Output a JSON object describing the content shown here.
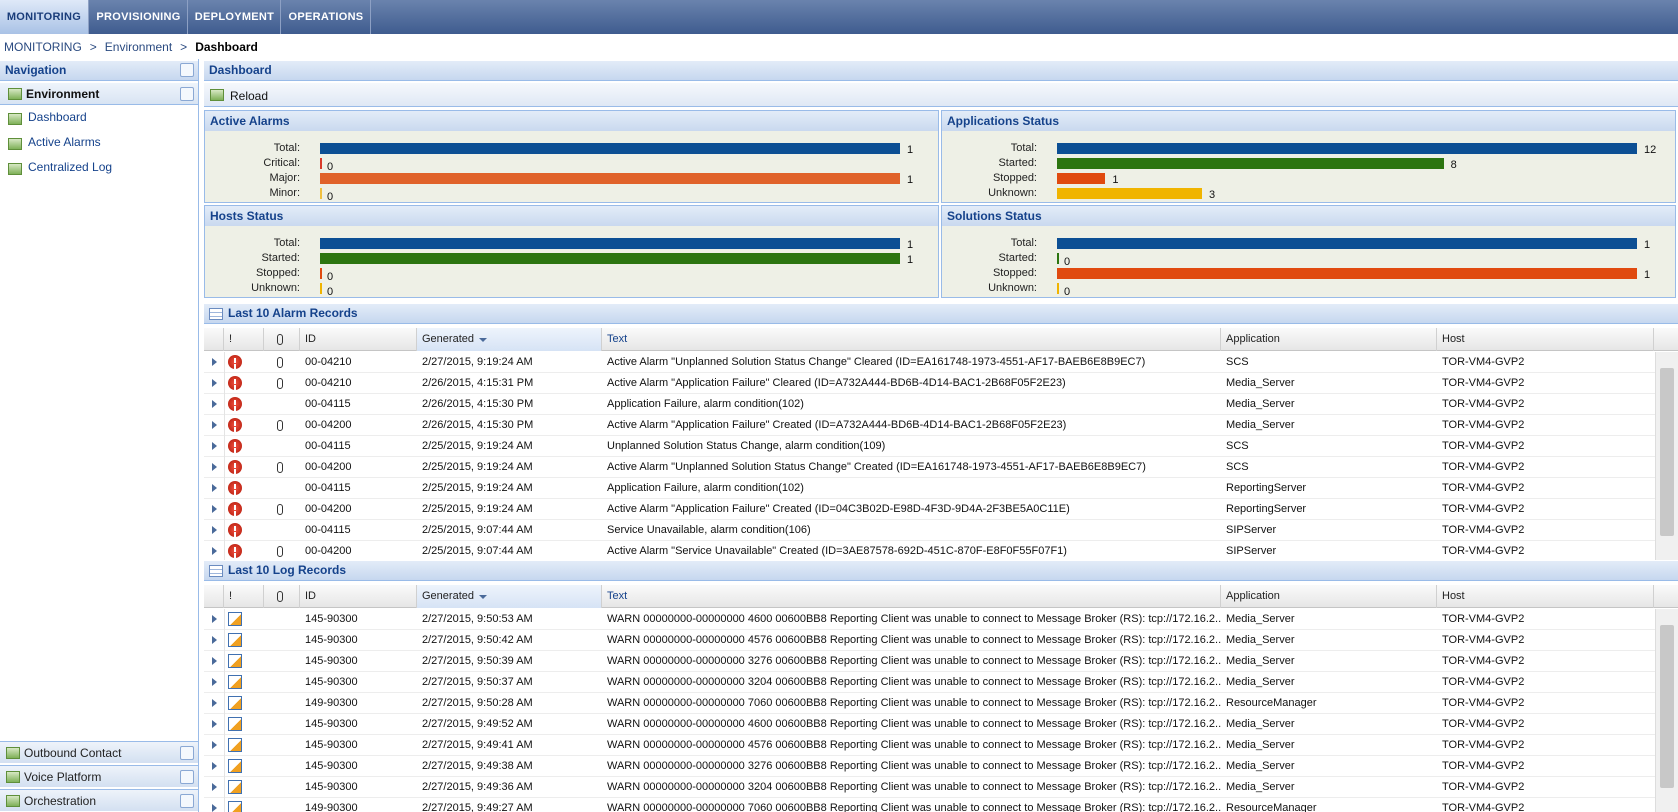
{
  "tabs": [
    "MONITORING",
    "PROVISIONING",
    "DEPLOYMENT",
    "OPERATIONS"
  ],
  "breadcrumb": [
    "MONITORING",
    ">",
    "Environment",
    ">",
    "Dashboard"
  ],
  "navigation": {
    "title": "Navigation",
    "group": "Environment",
    "items": [
      "Dashboard",
      "Active Alarms",
      "Centralized Log"
    ],
    "bottom_groups": [
      "Outbound Contact",
      "Voice Platform",
      "Orchestration"
    ]
  },
  "main": {
    "title": "Dashboard",
    "reload": "Reload"
  },
  "panels": [
    {
      "title": "Active Alarms",
      "rows": [
        {
          "label": "Total:",
          "value": 1,
          "color": "#0c4f94"
        },
        {
          "label": "Critical:",
          "value": 0,
          "color": "#d83a2a"
        },
        {
          "label": "Major:",
          "value": 1,
          "color": "#e0622a"
        },
        {
          "label": "Minor:",
          "value": 0,
          "color": "#f0c040"
        }
      ]
    },
    {
      "title": "Applications Status",
      "rows": [
        {
          "label": "Total:",
          "value": 12,
          "color": "#0c4f94"
        },
        {
          "label": "Started:",
          "value": 8,
          "color": "#2c7510"
        },
        {
          "label": "Stopped:",
          "value": 1,
          "color": "#e04a10"
        },
        {
          "label": "Unknown:",
          "value": 3,
          "color": "#f0b400"
        }
      ]
    },
    {
      "title": "Hosts Status",
      "rows": [
        {
          "label": "Total:",
          "value": 1,
          "color": "#0c4f94"
        },
        {
          "label": "Started:",
          "value": 1,
          "color": "#2c7510"
        },
        {
          "label": "Stopped:",
          "value": 0,
          "color": "#e04a10"
        },
        {
          "label": "Unknown:",
          "value": 0,
          "color": "#f0b400"
        }
      ]
    },
    {
      "title": "Solutions Status",
      "rows": [
        {
          "label": "Total:",
          "value": 1,
          "color": "#0c4f94"
        },
        {
          "label": "Started:",
          "value": 0,
          "color": "#2c7510"
        },
        {
          "label": "Stopped:",
          "value": 1,
          "color": "#e04a10"
        },
        {
          "label": "Unknown:",
          "value": 0,
          "color": "#f0b400"
        }
      ]
    }
  ],
  "alarm_table": {
    "title": "Last 10 Alarm Records",
    "columns": [
      "!",
      "ID",
      "Generated",
      "Text",
      "Application",
      "Host"
    ],
    "rows": [
      {
        "attachment": true,
        "id": "00-04210",
        "generated": "2/27/2015, 9:19:24 AM",
        "text": "Active Alarm \"Unplanned Solution Status Change\" Cleared (ID=EA161748-1973-4551-AF17-BAEB6E8B9EC7)",
        "application": "SCS",
        "host": "TOR-VM4-GVP2"
      },
      {
        "attachment": true,
        "id": "00-04210",
        "generated": "2/26/2015, 4:15:31 PM",
        "text": "Active Alarm \"Application Failure\" Cleared (ID=A732A444-BD6B-4D14-BAC1-2B68F05F2E23)",
        "application": "Media_Server",
        "host": "TOR-VM4-GVP2"
      },
      {
        "attachment": false,
        "id": "00-04115",
        "generated": "2/26/2015, 4:15:30 PM",
        "text": "Application Failure, alarm condition(102)",
        "application": "Media_Server",
        "host": "TOR-VM4-GVP2"
      },
      {
        "attachment": true,
        "id": "00-04200",
        "generated": "2/26/2015, 4:15:30 PM",
        "text": "Active Alarm \"Application Failure\" Created (ID=A732A444-BD6B-4D14-BAC1-2B68F05F2E23)",
        "application": "Media_Server",
        "host": "TOR-VM4-GVP2"
      },
      {
        "attachment": false,
        "id": "00-04115",
        "generated": "2/25/2015, 9:19:24 AM",
        "text": "Unplanned Solution Status Change, alarm condition(109)",
        "application": "SCS",
        "host": "TOR-VM4-GVP2"
      },
      {
        "attachment": true,
        "id": "00-04200",
        "generated": "2/25/2015, 9:19:24 AM",
        "text": "Active Alarm \"Unplanned Solution Status Change\" Created (ID=EA161748-1973-4551-AF17-BAEB6E8B9EC7)",
        "application": "SCS",
        "host": "TOR-VM4-GVP2"
      },
      {
        "attachment": false,
        "id": "00-04115",
        "generated": "2/25/2015, 9:19:24 AM",
        "text": "Application Failure, alarm condition(102)",
        "application": "ReportingServer",
        "host": "TOR-VM4-GVP2"
      },
      {
        "attachment": true,
        "id": "00-04200",
        "generated": "2/25/2015, 9:19:24 AM",
        "text": "Active Alarm \"Application Failure\" Created (ID=04C3B02D-E98D-4F3D-9D4A-2F3BE5A0C11E)",
        "application": "ReportingServer",
        "host": "TOR-VM4-GVP2"
      },
      {
        "attachment": false,
        "id": "00-04115",
        "generated": "2/25/2015, 9:07:44 AM",
        "text": "Service Unavailable, alarm condition(106)",
        "application": "SIPServer",
        "host": "TOR-VM4-GVP2"
      },
      {
        "attachment": true,
        "id": "00-04200",
        "generated": "2/25/2015, 9:07:44 AM",
        "text": "Active Alarm \"Service Unavailable\" Created (ID=3AE87578-692D-451C-870F-E8F0F55F07F1)",
        "application": "SIPServer",
        "host": "TOR-VM4-GVP2"
      }
    ]
  },
  "log_table": {
    "title": "Last 10 Log Records",
    "columns": [
      "!",
      "ID",
      "Generated",
      "Text",
      "Application",
      "Host"
    ],
    "rows": [
      {
        "attachment": false,
        "id": "145-90300",
        "generated": "2/27/2015, 9:50:53 AM",
        "text": "WARN 00000000-00000000 4600 00600BB8 Reporting Client was unable to connect to Message Broker (RS): tcp://172.16.2....",
        "application": "Media_Server",
        "host": "TOR-VM4-GVP2"
      },
      {
        "attachment": false,
        "id": "145-90300",
        "generated": "2/27/2015, 9:50:42 AM",
        "text": "WARN 00000000-00000000 4576 00600BB8 Reporting Client was unable to connect to Message Broker (RS): tcp://172.16.2....",
        "application": "Media_Server",
        "host": "TOR-VM4-GVP2"
      },
      {
        "attachment": false,
        "id": "145-90300",
        "generated": "2/27/2015, 9:50:39 AM",
        "text": "WARN 00000000-00000000 3276 00600BB8 Reporting Client was unable to connect to Message Broker (RS): tcp://172.16.2....",
        "application": "Media_Server",
        "host": "TOR-VM4-GVP2"
      },
      {
        "attachment": false,
        "id": "145-90300",
        "generated": "2/27/2015, 9:50:37 AM",
        "text": "WARN 00000000-00000000 3204 00600BB8 Reporting Client was unable to connect to Message Broker (RS): tcp://172.16.2....",
        "application": "Media_Server",
        "host": "TOR-VM4-GVP2"
      },
      {
        "attachment": false,
        "id": "149-90300",
        "generated": "2/27/2015, 9:50:28 AM",
        "text": "WARN 00000000-00000000 7060 00600BB8 Reporting Client was unable to connect to Message Broker (RS): tcp://172.16.2....",
        "application": "ResourceManager",
        "host": "TOR-VM4-GVP2"
      },
      {
        "attachment": false,
        "id": "145-90300",
        "generated": "2/27/2015, 9:49:52 AM",
        "text": "WARN 00000000-00000000 4600 00600BB8 Reporting Client was unable to connect to Message Broker (RS): tcp://172.16.2....",
        "application": "Media_Server",
        "host": "TOR-VM4-GVP2"
      },
      {
        "attachment": false,
        "id": "145-90300",
        "generated": "2/27/2015, 9:49:41 AM",
        "text": "WARN 00000000-00000000 4576 00600BB8 Reporting Client was unable to connect to Message Broker (RS): tcp://172.16.2....",
        "application": "Media_Server",
        "host": "TOR-VM4-GVP2"
      },
      {
        "attachment": false,
        "id": "145-90300",
        "generated": "2/27/2015, 9:49:38 AM",
        "text": "WARN 00000000-00000000 3276 00600BB8 Reporting Client was unable to connect to Message Broker (RS): tcp://172.16.2....",
        "application": "Media_Server",
        "host": "TOR-VM4-GVP2"
      },
      {
        "attachment": false,
        "id": "145-90300",
        "generated": "2/27/2015, 9:49:36 AM",
        "text": "WARN 00000000-00000000 3204 00600BB8 Reporting Client was unable to connect to Message Broker (RS): tcp://172.16.2....",
        "application": "Media_Server",
        "host": "TOR-VM4-GVP2"
      },
      {
        "attachment": false,
        "id": "149-90300",
        "generated": "2/27/2015, 9:49:27 AM",
        "text": "WARN 00000000-00000000 7060 00600BB8 Reporting Client was unable to connect to Message Broker (RS): tcp://172.16.2....",
        "application": "ResourceManager",
        "host": "TOR-VM4-GVP2"
      }
    ]
  }
}
